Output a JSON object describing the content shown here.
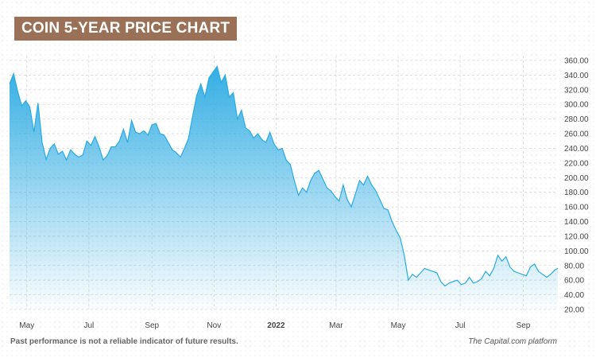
{
  "title": "COIN 5-YEAR PRICE CHART",
  "footer": {
    "disclaimer": "Past performance is not a reliable indicator of future results.",
    "source": "The Capital.com platform"
  },
  "colors": {
    "title_bg": "#9a7056",
    "line": "#29aae2",
    "fill_top": "#29aae2",
    "fill_bottom": "#ffffff",
    "grid": "#d9d9d9",
    "axis_text": "#444444"
  },
  "chart_data": {
    "type": "area",
    "title": "",
    "xlabel": "",
    "ylabel": "",
    "ylim": [
      20,
      360
    ],
    "yticks": [
      "360.00",
      "340.00",
      "320.00",
      "300.00",
      "280.00",
      "260.00",
      "240.00",
      "220.00",
      "200.00",
      "180.00",
      "160.00",
      "140.00",
      "120.00",
      "100.00",
      "80.00",
      "60.00",
      "40.00",
      "20.00"
    ],
    "xticks": [
      {
        "label": "May",
        "date": "2021-05-01"
      },
      {
        "label": "Jul",
        "date": "2021-07-01"
      },
      {
        "label": "Sep",
        "date": "2021-09-01"
      },
      {
        "label": "Nov",
        "date": "2021-11-01"
      },
      {
        "label": "2022",
        "date": "2022-01-01"
      },
      {
        "label": "Mar",
        "date": "2022-03-01"
      },
      {
        "label": "May",
        "date": "2022-05-01"
      },
      {
        "label": "Jul",
        "date": "2022-07-01"
      },
      {
        "label": "Sep",
        "date": "2022-09-01"
      }
    ],
    "grid": true,
    "x_start": "2021-04-14",
    "x_end": "2022-10-05",
    "series": [
      {
        "values": [
          [
            "2021-04-14",
            328
          ],
          [
            "2021-04-18",
            342
          ],
          [
            "2021-04-22",
            318
          ],
          [
            "2021-04-26",
            298
          ],
          [
            "2021-04-30",
            305
          ],
          [
            "2021-05-04",
            296
          ],
          [
            "2021-05-08",
            262
          ],
          [
            "2021-05-12",
            302
          ],
          [
            "2021-05-16",
            248
          ],
          [
            "2021-05-20",
            225
          ],
          [
            "2021-05-24",
            240
          ],
          [
            "2021-05-28",
            246
          ],
          [
            "2021-06-01",
            232
          ],
          [
            "2021-06-05",
            236
          ],
          [
            "2021-06-09",
            224
          ],
          [
            "2021-06-13",
            238
          ],
          [
            "2021-06-17",
            232
          ],
          [
            "2021-06-21",
            228
          ],
          [
            "2021-06-25",
            231
          ],
          [
            "2021-06-29",
            250
          ],
          [
            "2021-07-03",
            244
          ],
          [
            "2021-07-07",
            256
          ],
          [
            "2021-07-11",
            242
          ],
          [
            "2021-07-15",
            224
          ],
          [
            "2021-07-19",
            230
          ],
          [
            "2021-07-23",
            242
          ],
          [
            "2021-07-27",
            242
          ],
          [
            "2021-07-31",
            250
          ],
          [
            "2021-08-04",
            266
          ],
          [
            "2021-08-08",
            248
          ],
          [
            "2021-08-12",
            278
          ],
          [
            "2021-08-16",
            262
          ],
          [
            "2021-08-20",
            260
          ],
          [
            "2021-08-24",
            264
          ],
          [
            "2021-08-28",
            258
          ],
          [
            "2021-09-01",
            272
          ],
          [
            "2021-09-05",
            274
          ],
          [
            "2021-09-09",
            260
          ],
          [
            "2021-09-13",
            258
          ],
          [
            "2021-09-17",
            248
          ],
          [
            "2021-09-21",
            238
          ],
          [
            "2021-09-25",
            234
          ],
          [
            "2021-09-29",
            228
          ],
          [
            "2021-10-03",
            240
          ],
          [
            "2021-10-07",
            254
          ],
          [
            "2021-10-11",
            284
          ],
          [
            "2021-10-15",
            312
          ],
          [
            "2021-10-19",
            328
          ],
          [
            "2021-10-23",
            310
          ],
          [
            "2021-10-27",
            336
          ],
          [
            "2021-10-31",
            344
          ],
          [
            "2021-11-04",
            352
          ],
          [
            "2021-11-08",
            330
          ],
          [
            "2021-11-12",
            340
          ],
          [
            "2021-11-16",
            310
          ],
          [
            "2021-11-20",
            316
          ],
          [
            "2021-11-24",
            280
          ],
          [
            "2021-11-28",
            292
          ],
          [
            "2021-12-02",
            268
          ],
          [
            "2021-12-06",
            264
          ],
          [
            "2021-12-10",
            254
          ],
          [
            "2021-12-14",
            260
          ],
          [
            "2021-12-18",
            252
          ],
          [
            "2021-12-22",
            248
          ],
          [
            "2021-12-26",
            262
          ],
          [
            "2021-12-30",
            246
          ],
          [
            "2022-01-03",
            238
          ],
          [
            "2022-01-07",
            240
          ],
          [
            "2022-01-11",
            224
          ],
          [
            "2022-01-15",
            218
          ],
          [
            "2022-01-19",
            196
          ],
          [
            "2022-01-23",
            176
          ],
          [
            "2022-01-27",
            186
          ],
          [
            "2022-01-31",
            180
          ],
          [
            "2022-02-04",
            196
          ],
          [
            "2022-02-08",
            206
          ],
          [
            "2022-02-12",
            210
          ],
          [
            "2022-02-16",
            198
          ],
          [
            "2022-02-20",
            186
          ],
          [
            "2022-02-24",
            182
          ],
          [
            "2022-02-28",
            174
          ],
          [
            "2022-03-04",
            168
          ],
          [
            "2022-03-08",
            190
          ],
          [
            "2022-03-12",
            170
          ],
          [
            "2022-03-16",
            160
          ],
          [
            "2022-03-20",
            178
          ],
          [
            "2022-03-24",
            196
          ],
          [
            "2022-03-28",
            190
          ],
          [
            "2022-04-01",
            202
          ],
          [
            "2022-04-05",
            190
          ],
          [
            "2022-04-09",
            182
          ],
          [
            "2022-04-13",
            170
          ],
          [
            "2022-04-17",
            158
          ],
          [
            "2022-04-21",
            156
          ],
          [
            "2022-04-25",
            140
          ],
          [
            "2022-04-29",
            128
          ],
          [
            "2022-05-03",
            118
          ],
          [
            "2022-05-07",
            94
          ],
          [
            "2022-05-11",
            60
          ],
          [
            "2022-05-15",
            68
          ],
          [
            "2022-05-19",
            64
          ],
          [
            "2022-05-23",
            70
          ],
          [
            "2022-05-27",
            76
          ],
          [
            "2022-05-31",
            74
          ],
          [
            "2022-06-04",
            72
          ],
          [
            "2022-06-08",
            70
          ],
          [
            "2022-06-12",
            58
          ],
          [
            "2022-06-16",
            52
          ],
          [
            "2022-06-20",
            56
          ],
          [
            "2022-06-24",
            58
          ],
          [
            "2022-06-28",
            60
          ],
          [
            "2022-07-02",
            54
          ],
          [
            "2022-07-06",
            56
          ],
          [
            "2022-07-10",
            64
          ],
          [
            "2022-07-14",
            56
          ],
          [
            "2022-07-18",
            58
          ],
          [
            "2022-07-22",
            62
          ],
          [
            "2022-07-26",
            72
          ],
          [
            "2022-07-30",
            66
          ],
          [
            "2022-08-03",
            76
          ],
          [
            "2022-08-07",
            94
          ],
          [
            "2022-08-11",
            86
          ],
          [
            "2022-08-15",
            92
          ],
          [
            "2022-08-19",
            78
          ],
          [
            "2022-08-23",
            72
          ],
          [
            "2022-08-27",
            70
          ],
          [
            "2022-08-31",
            68
          ],
          [
            "2022-09-04",
            66
          ],
          [
            "2022-09-08",
            78
          ],
          [
            "2022-09-12",
            82
          ],
          [
            "2022-09-16",
            72
          ],
          [
            "2022-09-20",
            68
          ],
          [
            "2022-09-24",
            64
          ],
          [
            "2022-09-28",
            68
          ],
          [
            "2022-10-02",
            74
          ],
          [
            "2022-10-05",
            76
          ]
        ]
      }
    ]
  }
}
